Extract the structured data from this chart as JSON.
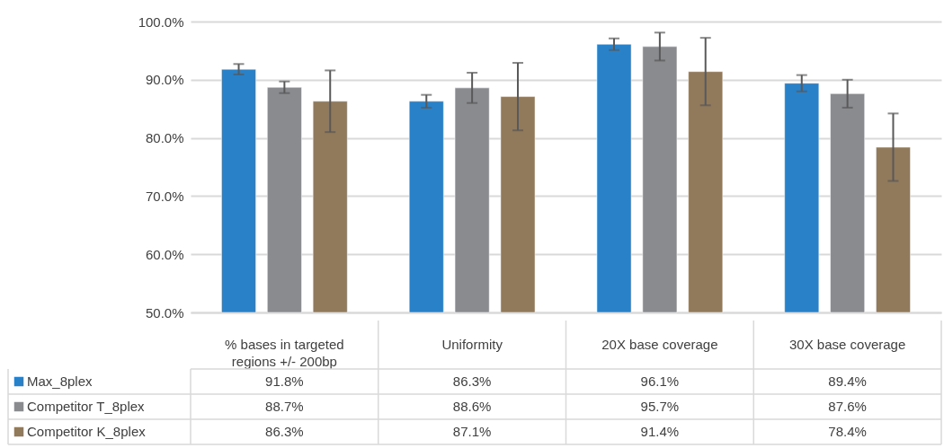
{
  "chart_data": {
    "type": "bar",
    "categories": [
      "% bases in targeted regions +/- 200bp",
      "Uniformity",
      "20X base coverage",
      "30X base coverage"
    ],
    "series": [
      {
        "name": "Max_8plex",
        "color": "#2981c8",
        "values": [
          91.8,
          86.3,
          96.1,
          89.4
        ],
        "errors": [
          0.9,
          1.1,
          1.0,
          1.4
        ],
        "value_labels": [
          "91.8%",
          "86.3%",
          "96.1%",
          "89.4%"
        ]
      },
      {
        "name": "Competitor T_8plex",
        "color": "#8a8b8f",
        "values": [
          88.7,
          88.6,
          95.7,
          87.6
        ],
        "errors": [
          1.0,
          2.6,
          2.4,
          2.4
        ],
        "value_labels": [
          "88.7%",
          "88.6%",
          "95.7%",
          "87.6%"
        ]
      },
      {
        "name": "Competitor K_8plex",
        "color": "#91795b",
        "values": [
          86.3,
          87.1,
          91.4,
          78.4
        ],
        "errors": [
          5.3,
          5.8,
          5.8,
          5.8
        ],
        "value_labels": [
          "86.3%",
          "87.1%",
          "91.4%",
          "78.4%"
        ]
      }
    ],
    "ylim": [
      50,
      100
    ],
    "yticks": [
      {
        "value": 50,
        "label": "50.0%"
      },
      {
        "value": 60,
        "label": "60.0%"
      },
      {
        "value": 70,
        "label": "70.0%"
      },
      {
        "value": 80,
        "label": "80.0%"
      },
      {
        "value": 90,
        "label": "90.0%"
      },
      {
        "value": 100,
        "label": "100.0%"
      }
    ],
    "grid": "y",
    "legend": "bottom left"
  }
}
